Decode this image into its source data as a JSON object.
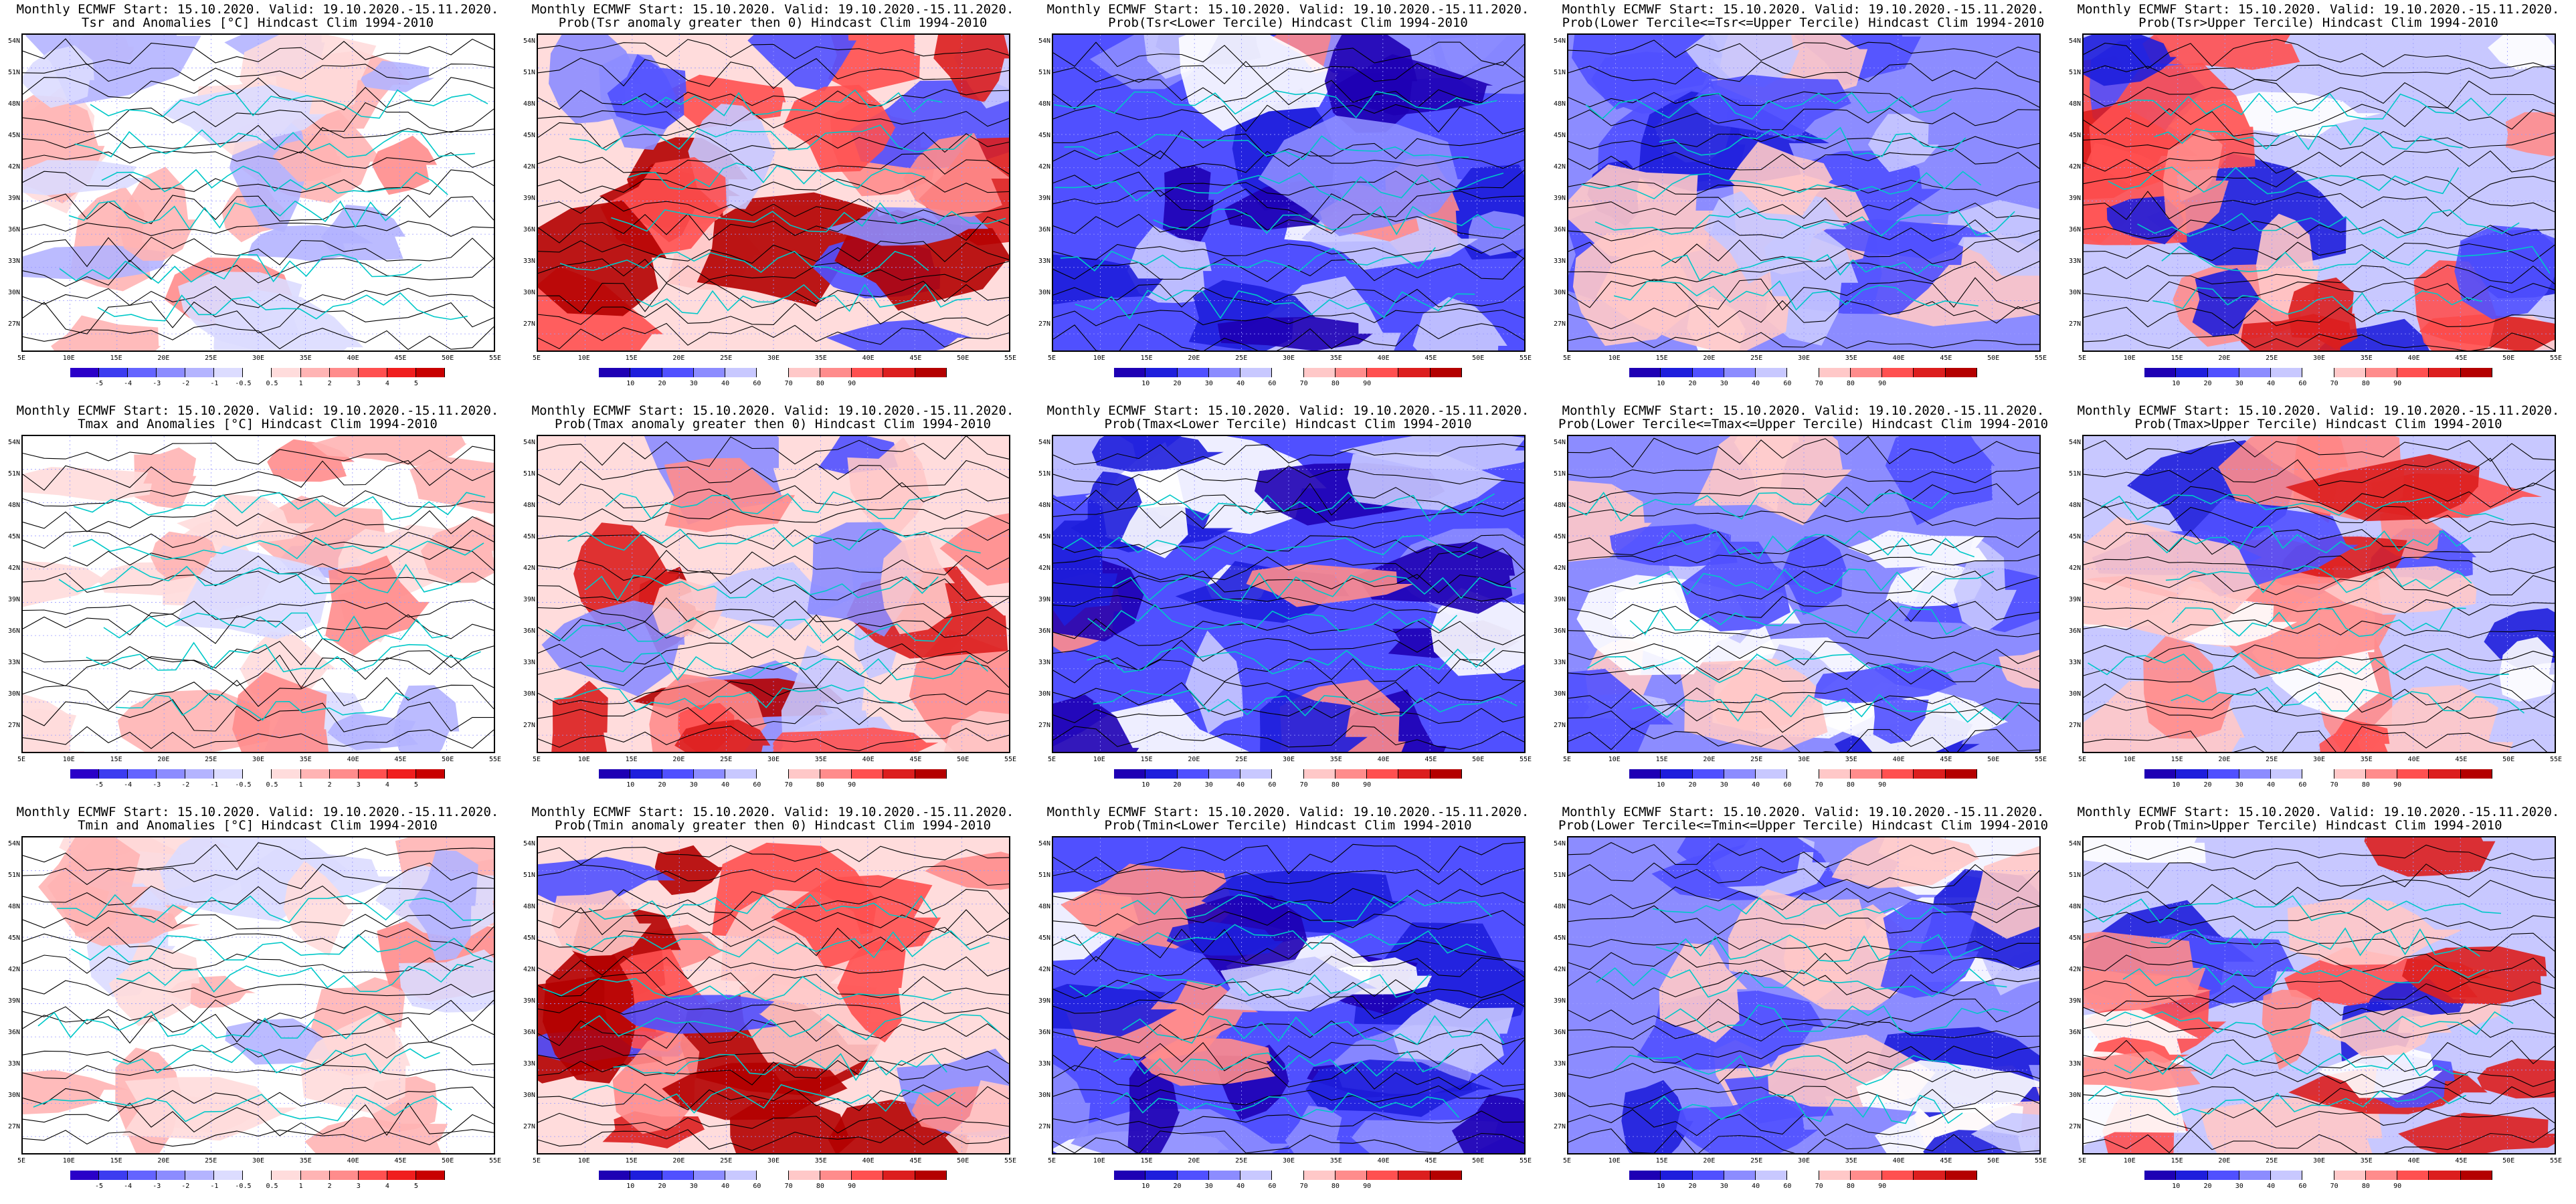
{
  "panels": [
    {
      "line1": "Monthly ECMWF Start: 15.10.2020. Valid: 19.10.2020.-15.11.2020.",
      "line2": "Tsr and Anomalies [°C] Hindcast Clim 1994-2010",
      "kind": "anom",
      "colorbar": "anomaly"
    },
    {
      "line1": "Monthly ECMWF Start: 15.10.2020. Valid: 19.10.2020.-15.11.2020.",
      "line2": "Prob(Tsr anomaly greater then 0) Hindcast Clim 1994-2010",
      "kind": "prob_pos",
      "colorbar": "prob"
    },
    {
      "line1": "Monthly ECMWF Start: 15.10.2020. Valid: 19.10.2020.-15.11.2020.",
      "line2": "Prob(Tsr<Lower Tercile) Hindcast Clim 1994-2010",
      "kind": "prob_low",
      "colorbar": "prob"
    },
    {
      "line1": "Monthly ECMWF Start: 15.10.2020. Valid: 19.10.2020.-15.11.2020.",
      "line2": "Prob(Lower Tercile<=Tsr<=Upper Tercile) Hindcast Clim 1994-2010",
      "kind": "prob_mid",
      "colorbar": "prob"
    },
    {
      "line1": "Monthly ECMWF Start: 15.10.2020. Valid: 19.10.2020.-15.11.2020.",
      "line2": "Prob(Tsr>Upper Tercile) Hindcast Clim 1994-2010",
      "kind": "prob_up",
      "colorbar": "prob"
    },
    {
      "line1": "Monthly ECMWF Start: 15.10.2020. Valid: 19.10.2020.-15.11.2020.",
      "line2": "Tmax and Anomalies [°C] Hindcast Clim 1994-2010",
      "kind": "anom",
      "colorbar": "anomaly"
    },
    {
      "line1": "Monthly ECMWF Start: 15.10.2020. Valid: 19.10.2020.-15.11.2020.",
      "line2": "Prob(Tmax anomaly greater then 0) Hindcast Clim 1994-2010",
      "kind": "prob_pos",
      "colorbar": "prob"
    },
    {
      "line1": "Monthly ECMWF Start: 15.10.2020. Valid: 19.10.2020.-15.11.2020.",
      "line2": "Prob(Tmax<Lower Tercile) Hindcast Clim 1994-2010",
      "kind": "prob_low",
      "colorbar": "prob"
    },
    {
      "line1": "Monthly ECMWF Start: 15.10.2020. Valid: 19.10.2020.-15.11.2020.",
      "line2": "Prob(Lower Tercile<=Tmax<=Upper Tercile) Hindcast Clim 1994-2010",
      "kind": "prob_mid",
      "colorbar": "prob"
    },
    {
      "line1": "Monthly ECMWF Start: 15.10.2020. Valid: 19.10.2020.-15.11.2020.",
      "line2": "Prob(Tmax>Upper Tercile) Hindcast Clim 1994-2010",
      "kind": "prob_up",
      "colorbar": "prob"
    },
    {
      "line1": "Monthly ECMWF Start: 15.10.2020. Valid: 19.10.2020.-15.11.2020.",
      "line2": "Tmin and Anomalies [°C] Hindcast Clim 1994-2010",
      "kind": "anom",
      "colorbar": "anomaly"
    },
    {
      "line1": "Monthly ECMWF Start: 15.10.2020. Valid: 19.10.2020.-15.11.2020.",
      "line2": "Prob(Tmin anomaly greater then 0) Hindcast Clim 1994-2010",
      "kind": "prob_pos",
      "colorbar": "prob"
    },
    {
      "line1": "Monthly ECMWF Start: 15.10.2020. Valid: 19.10.2020.-15.11.2020.",
      "line2": "Prob(Tmin<Lower Tercile) Hindcast Clim 1994-2010",
      "kind": "prob_low",
      "colorbar": "prob"
    },
    {
      "line1": "Monthly ECMWF Start: 15.10.2020. Valid: 19.10.2020.-15.11.2020.",
      "line2": "Prob(Lower Tercile<=Tmin<=Upper Tercile) Hindcast Clim 1994-2010",
      "kind": "prob_mid",
      "colorbar": "prob"
    },
    {
      "line1": "Monthly ECMWF Start: 15.10.2020. Valid: 19.10.2020.-15.11.2020.",
      "line2": "Prob(Tmin>Upper Tercile) Hindcast Clim 1994-2010",
      "kind": "prob_up",
      "colorbar": "prob"
    }
  ],
  "lat_labels": [
    "54N",
    "51N",
    "48N",
    "45N",
    "42N",
    "39N",
    "36N",
    "33N",
    "30N",
    "27N"
  ],
  "lon_labels": [
    "5E",
    "10E",
    "15E",
    "20E",
    "25E",
    "30E",
    "35E",
    "40E",
    "45E",
    "50E",
    "55E"
  ],
  "colorbars": {
    "anomaly": {
      "ticks": [
        "-5",
        "-4",
        "-3",
        "-2",
        "-1",
        "-0.5",
        "0.5",
        "1",
        "2",
        "3",
        "4",
        "5"
      ],
      "colors": [
        "#2a00c8",
        "#3c3cf0",
        "#6464ff",
        "#8c8cff",
        "#b4b4ff",
        "#dcdcff",
        "#ffffff",
        "#ffdcdc",
        "#ffb4b4",
        "#ff8c8c",
        "#ff5050",
        "#f01e1e",
        "#c80000"
      ]
    },
    "prob": {
      "ticks": [
        "10",
        "20",
        "30",
        "40",
        "60",
        "70",
        "80",
        "90"
      ],
      "colors": [
        "#1e00b4",
        "#1e1edc",
        "#5050ff",
        "#8c8cff",
        "#c8c8ff",
        "#ffffff",
        "#ffc8c8",
        "#ff8c8c",
        "#ff5050",
        "#dc1e1e",
        "#b40000"
      ]
    }
  },
  "colors": {
    "coast": "#00c8c8",
    "contour": "#000000",
    "grid": "#9a9aff"
  }
}
